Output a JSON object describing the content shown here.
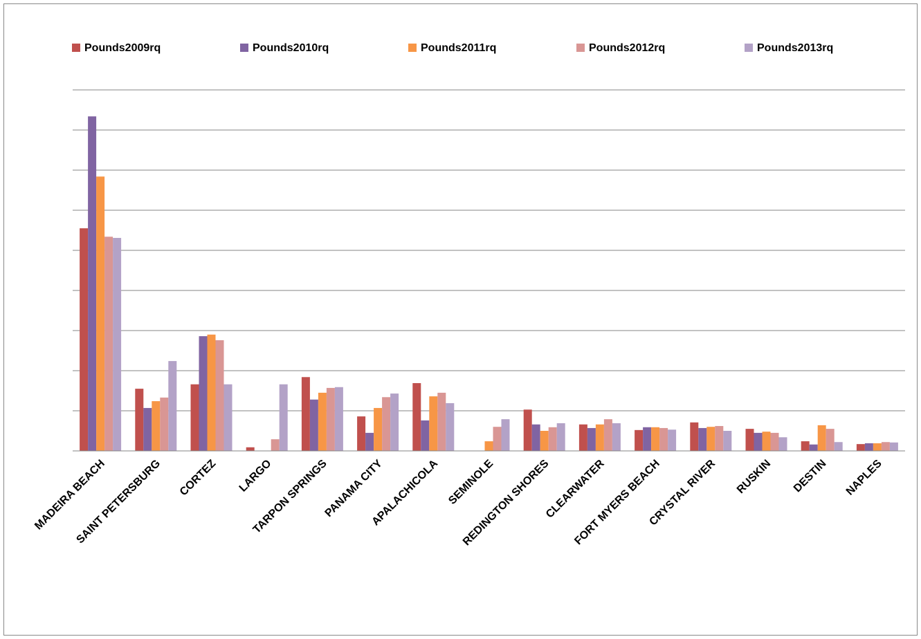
{
  "chart_data": {
    "type": "bar",
    "categories": [
      "MADEIRA BEACH",
      "SAINT PETERSBURG",
      "CORTEZ",
      "LARGO",
      "TARPON SPRINGS",
      "PANAMA CITY",
      "APALACHICOLA",
      "SEMINOLE",
      "REDINGTON SHORES",
      "CLEARWATER",
      "FORT MYERS BEACH",
      "CRYSTAL RIVER",
      "RUSKIN",
      "DESTIN",
      "NAPLES"
    ],
    "series": [
      {
        "name": "Pounds2009rq",
        "color": "#c0504d",
        "values": [
          5.55,
          1.55,
          1.66,
          0.09,
          1.84,
          0.86,
          1.69,
          null,
          1.03,
          0.66,
          0.52,
          0.71,
          0.55,
          0.24,
          0.17
        ]
      },
      {
        "name": "Pounds2010rq",
        "color": "#8064a2",
        "values": [
          8.34,
          1.07,
          2.86,
          null,
          1.28,
          0.45,
          0.76,
          null,
          0.66,
          0.57,
          0.59,
          0.57,
          0.45,
          0.16,
          0.19
        ]
      },
      {
        "name": "Pounds2011rq",
        "color": "#f79646",
        "values": [
          6.84,
          1.24,
          2.9,
          null,
          1.45,
          1.07,
          1.36,
          0.24,
          0.5,
          0.66,
          0.59,
          0.6,
          0.48,
          0.64,
          0.19
        ]
      },
      {
        "name": "Pounds2012rq",
        "color": "#d99694",
        "values": [
          5.34,
          1.33,
          2.76,
          0.29,
          1.57,
          1.34,
          1.45,
          0.6,
          0.59,
          0.79,
          0.57,
          0.62,
          0.45,
          0.55,
          0.22
        ]
      },
      {
        "name": "Pounds2013rq",
        "color": "#b3a2c7",
        "values": [
          5.31,
          2.24,
          1.66,
          1.66,
          1.59,
          1.43,
          1.19,
          0.79,
          0.69,
          0.69,
          0.53,
          0.5,
          0.34,
          0.22,
          0.21
        ]
      }
    ],
    "ylim": [
      0,
      9
    ],
    "yticks": [
      0,
      1,
      2,
      3,
      4,
      5,
      6,
      7,
      8,
      9
    ],
    "grid": true,
    "legend": "top"
  }
}
